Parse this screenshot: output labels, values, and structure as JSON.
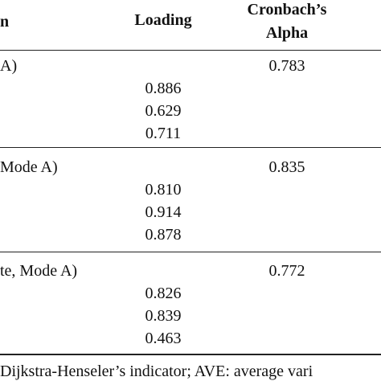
{
  "table": {
    "header": {
      "construct": "n",
      "loading": "Loading",
      "alpha": [
        "Cronbach’s",
        "Alpha"
      ]
    },
    "groups": [
      {
        "label": "A)",
        "alpha": "0.783",
        "loadings": [
          "0.886",
          "0.629",
          "0.711"
        ]
      },
      {
        "label": "Mode A)",
        "alpha": "0.835",
        "loadings": [
          "0.810",
          "0.914",
          "0.878"
        ]
      },
      {
        "label": "te, Mode A)",
        "alpha": "0.772",
        "loadings": [
          "0.826",
          "0.839",
          "0.463"
        ]
      }
    ],
    "footnote": "Dijkstra-Henseler’s indicator; AVE: average vari"
  }
}
